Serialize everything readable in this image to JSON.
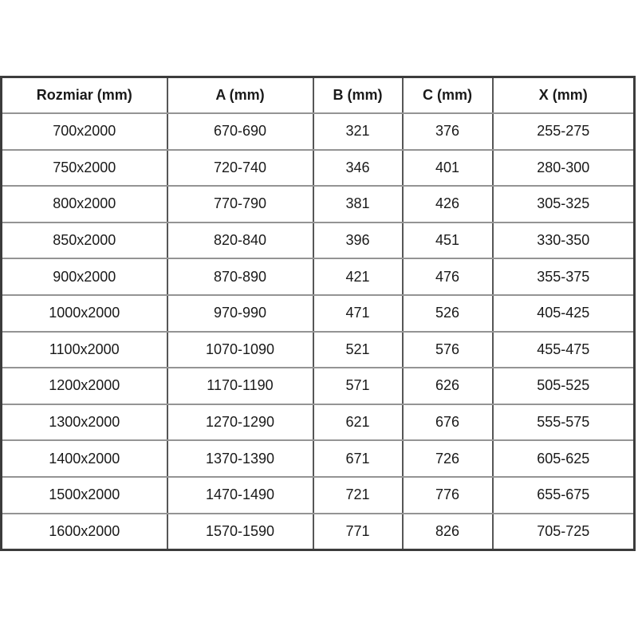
{
  "chart_data": {
    "type": "table",
    "title": "",
    "columns": [
      "Rozmiar (mm)",
      "A (mm)",
      "B (mm)",
      "C (mm)",
      "X (mm)"
    ],
    "rows": [
      [
        "700x2000",
        "670-690",
        "321",
        "376",
        "255-275"
      ],
      [
        "750x2000",
        "720-740",
        "346",
        "401",
        "280-300"
      ],
      [
        "800x2000",
        "770-790",
        "381",
        "426",
        "305-325"
      ],
      [
        "850x2000",
        "820-840",
        "396",
        "451",
        "330-350"
      ],
      [
        "900x2000",
        "870-890",
        "421",
        "476",
        "355-375"
      ],
      [
        "1000x2000",
        "970-990",
        "471",
        "526",
        "405-425"
      ],
      [
        "1100x2000",
        "1070-1090",
        "521",
        "576",
        "455-475"
      ],
      [
        "1200x2000",
        "1170-1190",
        "571",
        "626",
        "505-525"
      ],
      [
        "1300x2000",
        "1270-1290",
        "621",
        "676",
        "555-575"
      ],
      [
        "1400x2000",
        "1370-1390",
        "671",
        "726",
        "605-625"
      ],
      [
        "1500x2000",
        "1470-1490",
        "721",
        "776",
        "655-675"
      ],
      [
        "1600x2000",
        "1570-1590",
        "771",
        "826",
        "705-725"
      ]
    ],
    "colors": {
      "outer_border": "#3c3c3c",
      "vertical_border": "#565656",
      "horizontal_border": "#949494",
      "text": "#1a1a1a",
      "background": "#ffffff"
    }
  }
}
